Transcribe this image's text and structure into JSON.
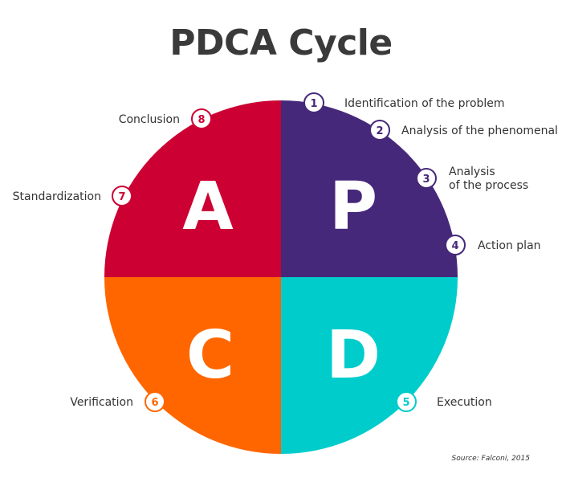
{
  "title": "PDCA Cycle",
  "source": "Source: Falconi, 2015",
  "colors": {
    "plan": "#46287a",
    "do": "#00cccc",
    "check": "#ff6600",
    "act": "#cc0033",
    "title": "#3a3a3a"
  },
  "quadrants": [
    {
      "key": "plan",
      "letter": "P"
    },
    {
      "key": "do",
      "letter": "D"
    },
    {
      "key": "check",
      "letter": "C"
    },
    {
      "key": "act",
      "letter": "A"
    }
  ],
  "steps": [
    {
      "number": "1",
      "label": "Identification of the problem",
      "phase": "plan"
    },
    {
      "number": "2",
      "label": "Analysis of the phenomenal",
      "phase": "plan"
    },
    {
      "number": "3",
      "label_line1": "Analysis",
      "label_line2": "of the process",
      "phase": "plan"
    },
    {
      "number": "4",
      "label": "Action plan",
      "phase": "plan"
    },
    {
      "number": "5",
      "label": "Execution",
      "phase": "do"
    },
    {
      "number": "6",
      "label": "Verification",
      "phase": "check"
    },
    {
      "number": "7",
      "label": "Standardization",
      "phase": "act"
    },
    {
      "number": "8",
      "label": "Conclusion",
      "phase": "act"
    }
  ]
}
